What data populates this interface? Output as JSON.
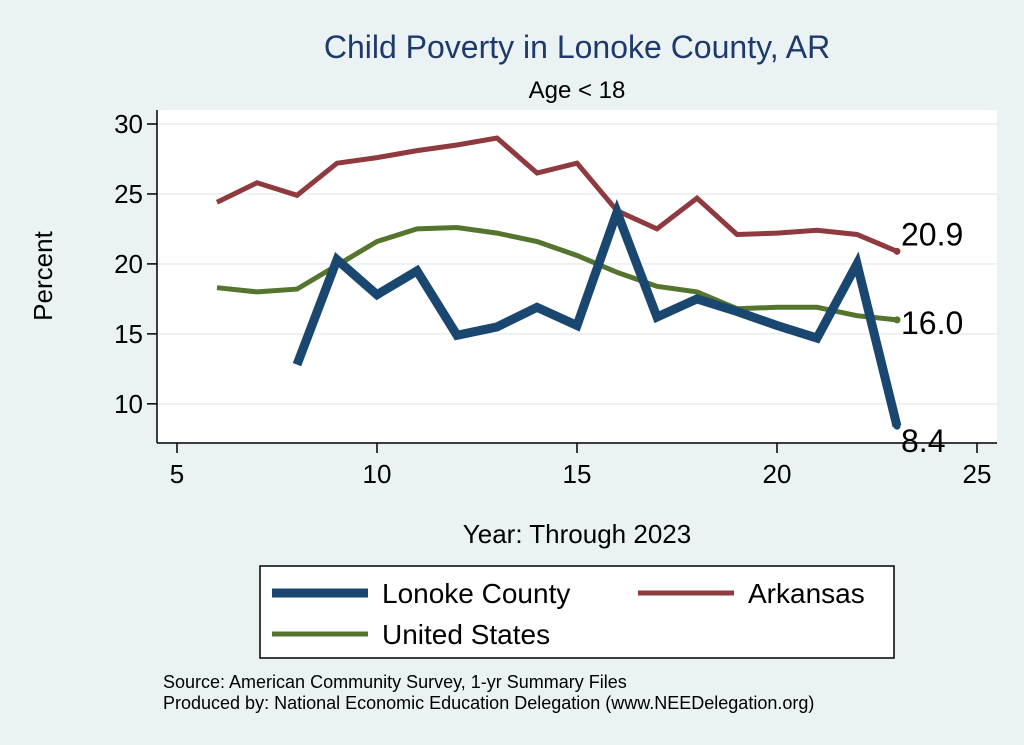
{
  "chart_data": {
    "type": "line",
    "title": "Child Poverty in Lonoke County, AR",
    "subtitle": "Age < 18",
    "xlabel": "Year: Through 2023",
    "ylabel": "Percent",
    "xlim": [
      4.5,
      25.5
    ],
    "ylim": [
      7.2,
      31
    ],
    "xticks": [
      5,
      10,
      15,
      20,
      25
    ],
    "yticks": [
      10,
      15,
      20,
      25,
      30
    ],
    "grid": true,
    "series": [
      {
        "name": "Lonoke County",
        "color": "#1a476f",
        "width": 9,
        "x": [
          8,
          9,
          10,
          11,
          12,
          13,
          14,
          15,
          16,
          17,
          18,
          19,
          20,
          21,
          22,
          23
        ],
        "y": [
          12.8,
          20.3,
          17.8,
          19.5,
          14.9,
          15.5,
          16.9,
          15.6,
          23.7,
          16.2,
          17.5,
          16.6,
          15.6,
          14.7,
          20.0,
          8.4
        ],
        "end_label": "8.4"
      },
      {
        "name": "Arkansas",
        "color": "#8f3a3e",
        "width": 5,
        "x": [
          6,
          7,
          8,
          9,
          10,
          11,
          12,
          13,
          14,
          15,
          16,
          17,
          18,
          19,
          20,
          21,
          22,
          23
        ],
        "y": [
          24.4,
          25.8,
          24.9,
          27.2,
          27.6,
          28.1,
          28.5,
          29.0,
          26.5,
          27.2,
          23.8,
          22.5,
          24.7,
          22.1,
          22.2,
          22.4,
          22.1,
          20.9
        ],
        "end_label": "20.9"
      },
      {
        "name": "United States",
        "color": "#55752f",
        "width": 5,
        "x": [
          6,
          7,
          8,
          9,
          10,
          11,
          12,
          13,
          14,
          15,
          16,
          17,
          18,
          19,
          20,
          21,
          22,
          23
        ],
        "y": [
          18.3,
          18.0,
          18.2,
          19.9,
          21.6,
          22.5,
          22.6,
          22.2,
          21.6,
          20.6,
          19.4,
          18.4,
          18.0,
          16.8,
          16.9,
          16.9,
          16.3,
          16.0
        ],
        "end_label": "16.0"
      }
    ],
    "notes": [
      "Source: American Community Survey, 1-yr Summary Files",
      "Produced by: National Economic Education Delegation (www.NEEDelegation.org)"
    ]
  }
}
